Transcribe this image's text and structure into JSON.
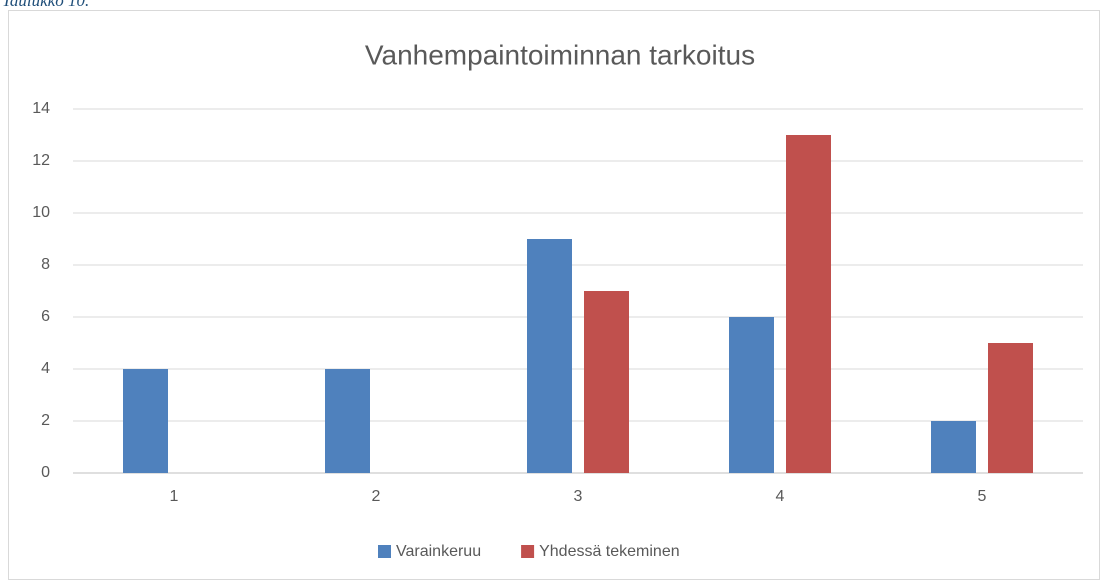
{
  "caption": "Taulukko 10.",
  "chart_data": {
    "type": "bar",
    "title": "Vanhempaintoiminnan tarkoitus",
    "categories": [
      "1",
      "2",
      "3",
      "4",
      "5"
    ],
    "series": [
      {
        "name": "Varainkeruu",
        "color": "#4f81bd",
        "values": [
          4,
          4,
          9,
          6,
          2
        ]
      },
      {
        "name": "Yhdessä tekeminen",
        "color": "#c0504d",
        "values": [
          0,
          0,
          7,
          13,
          5
        ]
      }
    ],
    "ylim": [
      0,
      14
    ],
    "yticks": [
      0,
      2,
      4,
      6,
      8,
      10,
      12,
      14
    ],
    "grid": true,
    "legend": "bottom"
  }
}
